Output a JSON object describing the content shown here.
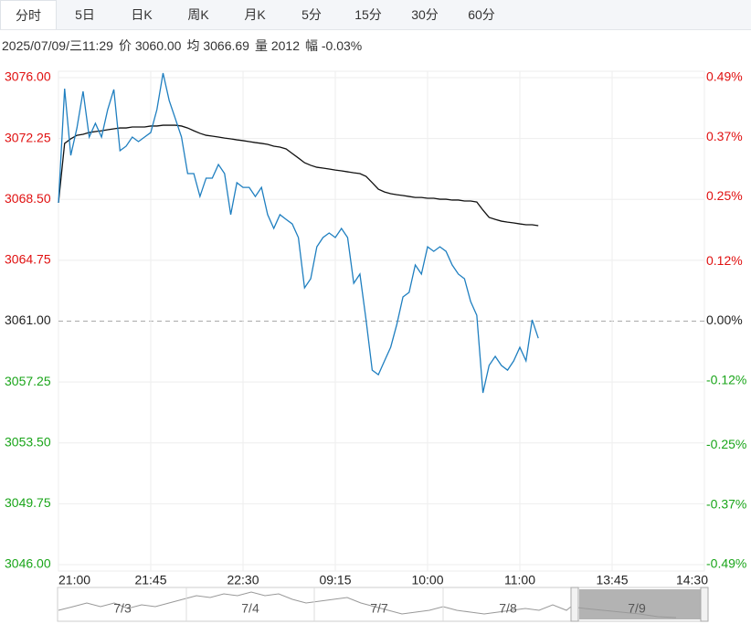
{
  "tabs": [
    "分时",
    "5日",
    "日K",
    "周K",
    "月K",
    "5分",
    "15分",
    "30分",
    "60分"
  ],
  "info": [
    "2025/07/09/三11:29",
    "价 3060.00",
    "均 3066.69",
    "量 2012",
    "幅 -0.03%"
  ],
  "chart_data": {
    "type": "line",
    "x": [
      0,
      3,
      6,
      9,
      12,
      15,
      18,
      21,
      24,
      27,
      30,
      33,
      36,
      39,
      42,
      45,
      48,
      51,
      54,
      57,
      60,
      63,
      66,
      69,
      72,
      75,
      78,
      81,
      84,
      87,
      90,
      93,
      96,
      99,
      102,
      105,
      108,
      111,
      114,
      117,
      120,
      123,
      126,
      129,
      132,
      135,
      138,
      141,
      144,
      147,
      150,
      153,
      156,
      159,
      162,
      165,
      168,
      171,
      174,
      177,
      180,
      183,
      186,
      189,
      192,
      195,
      198,
      201,
      204,
      207,
      210,
      213,
      216,
      219,
      222,
      225,
      228,
      231,
      234
    ],
    "series": [
      {
        "color": "#1f7fc0",
        "values": [
          3068.29,
          3075.32,
          3071.21,
          3072.9,
          3075.16,
          3072.34,
          3073.19,
          3072.34,
          3074.03,
          3075.27,
          3071.5,
          3071.78,
          3072.34,
          3072.06,
          3072.34,
          3072.62,
          3074.03,
          3076.28,
          3074.59,
          3073.47,
          3072.34,
          3070.09,
          3070.09,
          3068.68,
          3069.81,
          3069.81,
          3070.65,
          3070.09,
          3067.56,
          3069.53,
          3069.24,
          3069.24,
          3068.68,
          3069.24,
          3067.56,
          3066.71,
          3067.56,
          3067.27,
          3066.99,
          3066.15,
          3063.05,
          3063.61,
          3065.58,
          3066.15,
          3066.43,
          3066.15,
          3066.71,
          3066.15,
          3063.33,
          3063.9,
          3061.08,
          3057.98,
          3057.7,
          3058.55,
          3059.39,
          3060.8,
          3062.49,
          3062.77,
          3064.46,
          3063.9,
          3065.58,
          3065.3,
          3065.58,
          3065.3,
          3064.46,
          3063.9,
          3063.61,
          3062.21,
          3061.36,
          3056.58,
          3058.27,
          3058.83,
          3058.27,
          3057.98,
          3058.55,
          3059.39,
          3058.55,
          3061.08,
          3059.95
        ]
      },
      {
        "color": "#111111",
        "values": [
          3068.29,
          3071.95,
          3072.23,
          3072.45,
          3072.51,
          3072.62,
          3072.68,
          3072.73,
          3072.79,
          3072.85,
          3072.9,
          3072.9,
          3072.96,
          3072.96,
          3072.96,
          3073.02,
          3073.02,
          3073.07,
          3073.07,
          3073.07,
          3073.02,
          3072.9,
          3072.73,
          3072.57,
          3072.45,
          3072.4,
          3072.34,
          3072.28,
          3072.23,
          3072.17,
          3072.12,
          3072.06,
          3072.0,
          3071.95,
          3071.89,
          3071.78,
          3071.72,
          3071.61,
          3071.33,
          3071.05,
          3070.76,
          3070.6,
          3070.48,
          3070.43,
          3070.37,
          3070.31,
          3070.26,
          3070.2,
          3070.14,
          3070.09,
          3069.92,
          3069.53,
          3069.13,
          3068.96,
          3068.85,
          3068.79,
          3068.74,
          3068.68,
          3068.62,
          3068.62,
          3068.57,
          3068.57,
          3068.51,
          3068.51,
          3068.46,
          3068.46,
          3068.4,
          3068.4,
          3068.34,
          3067.84,
          3067.39,
          3067.27,
          3067.16,
          3067.1,
          3067.05,
          3066.99,
          3066.94,
          3066.94,
          3066.88
        ]
      }
    ],
    "xlim": [
      0,
      315
    ],
    "xticks": [
      {
        "value": 0,
        "label": "21:00"
      },
      {
        "value": 45,
        "label": "21:45"
      },
      {
        "value": 90,
        "label": "22:30"
      },
      {
        "value": 135,
        "label": "09:15"
      },
      {
        "value": 180,
        "label": "10:00"
      },
      {
        "value": 225,
        "label": "11:00"
      },
      {
        "value": 270,
        "label": "13:45"
      },
      {
        "value": 315,
        "label": "14:30"
      }
    ],
    "ylim": [
      3046,
      3076
    ],
    "yticks": [
      {
        "value": 3076,
        "label": "3076.00"
      },
      {
        "value": 3072.25,
        "label": "3072.25"
      },
      {
        "value": 3068.5,
        "label": "3068.50"
      },
      {
        "value": 3064.75,
        "label": "3064.75"
      },
      {
        "value": 3061,
        "label": "3061.00"
      },
      {
        "value": 3057.25,
        "label": "3057.25"
      },
      {
        "value": 3053.5,
        "label": "3053.50"
      },
      {
        "value": 3049.75,
        "label": "3049.75"
      },
      {
        "value": 3046,
        "label": "3046.00"
      }
    ],
    "y2lim": [
      -0.49,
      0.49
    ],
    "y2ticks": [
      {
        "value": 0.49,
        "label": "0.49%"
      },
      {
        "value": 0.37,
        "label": "0.37%"
      },
      {
        "value": 0.25,
        "label": "0.25%"
      },
      {
        "value": 0.12,
        "label": "0.12%"
      },
      {
        "value": 0,
        "label": "0.00%"
      },
      {
        "value": -0.12,
        "label": "-0.12%"
      },
      {
        "value": -0.25,
        "label": "-0.25%"
      },
      {
        "value": -0.37,
        "label": "-0.37%"
      },
      {
        "value": -0.49,
        "label": "-0.49%"
      }
    ],
    "reference": 3061,
    "up_color": "#e01010",
    "down_color": "#1aa51a",
    "grid": true
  },
  "navigator": {
    "labels": [
      "7/3",
      "7/4",
      "7/7",
      "7/8",
      "7/9"
    ]
  }
}
